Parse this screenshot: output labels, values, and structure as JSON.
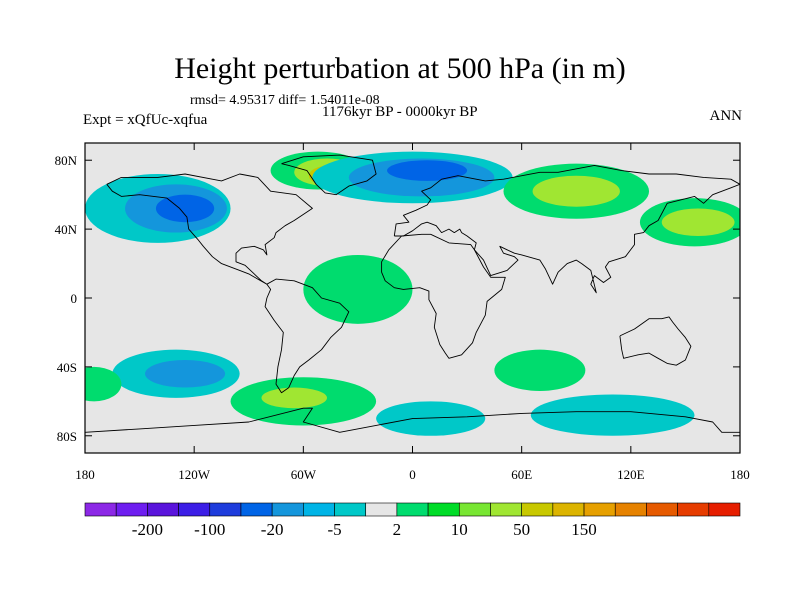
{
  "header": {
    "title": "Height perturbation at 500 hPa (in m)",
    "stats": "rmsd= 4.95317 diff= 1.54011e-08",
    "period": "1176kyr BP - 0000kyr BP",
    "experiment": "Expt = xQfUc-xqfua",
    "season": "ANN"
  },
  "map": {
    "projection": "cylindrical-equidistant",
    "lon_range": [
      -180,
      180
    ],
    "lat_range": [
      -90,
      90
    ],
    "x_ticks": [
      {
        "lon": -180,
        "label": "180"
      },
      {
        "lon": -120,
        "label": "120W"
      },
      {
        "lon": -60,
        "label": "60W"
      },
      {
        "lon": 0,
        "label": "0"
      },
      {
        "lon": 60,
        "label": "60E"
      },
      {
        "lon": 120,
        "label": "120E"
      },
      {
        "lon": 180,
        "label": "180"
      }
    ],
    "y_ticks": [
      {
        "lat": 80,
        "label": "80N"
      },
      {
        "lat": 40,
        "label": "40N"
      },
      {
        "lat": 0,
        "label": "0"
      },
      {
        "lat": -40,
        "label": "40S"
      },
      {
        "lat": -80,
        "label": "80S"
      }
    ],
    "background_color": "#e6e6e6",
    "anomaly_regions": [
      {
        "name": "north-pacific-low-outer",
        "color": "#00c8c8",
        "center": [
          -140,
          52
        ],
        "radius": [
          40,
          20
        ]
      },
      {
        "name": "north-pacific-low-mid",
        "color": "#1496dc",
        "center": [
          -130,
          52
        ],
        "radius": [
          28,
          14
        ]
      },
      {
        "name": "north-pacific-low-core",
        "color": "#0064e6",
        "center": [
          -125,
          52
        ],
        "radius": [
          16,
          8
        ]
      },
      {
        "name": "greenland-high-outer",
        "color": "#00dc6e",
        "center": [
          -52,
          74
        ],
        "radius": [
          26,
          11
        ]
      },
      {
        "name": "greenland-high-mid",
        "color": "#a0e632",
        "center": [
          -47,
          73
        ],
        "radius": [
          18,
          8
        ]
      },
      {
        "name": "greenland-high-core",
        "color": "#c8c800",
        "center": [
          -45,
          71
        ],
        "radius": [
          12,
          6
        ]
      },
      {
        "name": "north-atlantic-low-outer",
        "color": "#00c8c8",
        "center": [
          0,
          70
        ],
        "radius": [
          55,
          15
        ]
      },
      {
        "name": "north-atlantic-low-mid",
        "color": "#1496dc",
        "center": [
          5,
          70
        ],
        "radius": [
          40,
          11
        ]
      },
      {
        "name": "north-atlantic-low-core",
        "color": "#0064e6",
        "center": [
          8,
          74
        ],
        "radius": [
          22,
          6
        ]
      },
      {
        "name": "siberian-high-outer",
        "color": "#00dc6e",
        "center": [
          90,
          62
        ],
        "radius": [
          40,
          16
        ]
      },
      {
        "name": "siberian-high-core",
        "color": "#a0e632",
        "center": [
          90,
          62
        ],
        "radius": [
          24,
          9
        ]
      },
      {
        "name": "north-pacific-high-outer",
        "color": "#00dc6e",
        "center": [
          155,
          44
        ],
        "radius": [
          30,
          14
        ]
      },
      {
        "name": "north-pacific-high-core",
        "color": "#a0e632",
        "center": [
          157,
          44
        ],
        "radius": [
          20,
          8
        ]
      },
      {
        "name": "southeast-pacific-low-outer",
        "color": "#00c8c8",
        "center": [
          -130,
          -44
        ],
        "radius": [
          35,
          14
        ]
      },
      {
        "name": "southeast-pacific-low-core",
        "color": "#1496dc",
        "center": [
          -125,
          -44
        ],
        "radius": [
          22,
          8
        ]
      },
      {
        "name": "south-america-high-outer",
        "color": "#00dc6e",
        "center": [
          -60,
          -60
        ],
        "radius": [
          40,
          14
        ]
      },
      {
        "name": "south-america-high-core",
        "color": "#a0e632",
        "center": [
          -65,
          -58
        ],
        "radius": [
          18,
          6
        ]
      },
      {
        "name": "south-atlantic-high",
        "color": "#00dc6e",
        "center": [
          70,
          -42
        ],
        "radius": [
          25,
          12
        ]
      },
      {
        "name": "antarctic-low-atlantic",
        "color": "#00c8c8",
        "center": [
          10,
          -70
        ],
        "radius": [
          30,
          10
        ]
      },
      {
        "name": "antarctic-low-indian",
        "color": "#00c8c8",
        "center": [
          110,
          -68
        ],
        "radius": [
          45,
          12
        ]
      },
      {
        "name": "south-pacific-high",
        "color": "#00dc6e",
        "center": [
          -175,
          -50
        ],
        "radius": [
          15,
          10
        ]
      },
      {
        "name": "equatorial-atlantic-high",
        "color": "#00dc6e",
        "center": [
          -30,
          5
        ],
        "radius": [
          30,
          20
        ]
      }
    ],
    "coastline_color": "#000000",
    "coastlines": {
      "north-america": [
        [
          -168,
          66
        ],
        [
          -160,
          70
        ],
        [
          -140,
          70
        ],
        [
          -125,
          72
        ],
        [
          -105,
          68
        ],
        [
          -95,
          72
        ],
        [
          -85,
          70
        ],
        [
          -78,
          62
        ],
        [
          -64,
          60
        ],
        [
          -55,
          52
        ],
        [
          -65,
          45
        ],
        [
          -70,
          42
        ],
        [
          -75,
          38
        ],
        [
          -76,
          35
        ],
        [
          -81,
          31
        ],
        [
          -80,
          25
        ],
        [
          -82,
          28
        ],
        [
          -87,
          30
        ],
        [
          -94,
          29
        ],
        [
          -97,
          26
        ],
        [
          -97,
          21
        ],
        [
          -92,
          19
        ],
        [
          -88,
          15
        ],
        [
          -83,
          10
        ],
        [
          -80,
          8
        ],
        [
          -85,
          11
        ],
        [
          -90,
          14
        ],
        [
          -95,
          16
        ],
        [
          -105,
          20
        ],
        [
          -110,
          24
        ],
        [
          -115,
          30
        ],
        [
          -118,
          34
        ],
        [
          -123,
          40
        ],
        [
          -124,
          47
        ],
        [
          -128,
          52
        ],
        [
          -135,
          58
        ],
        [
          -150,
          60
        ],
        [
          -160,
          59
        ],
        [
          -165,
          62
        ],
        [
          -168,
          66
        ]
      ],
      "south-america": [
        [
          -80,
          8
        ],
        [
          -75,
          11
        ],
        [
          -65,
          10
        ],
        [
          -55,
          6
        ],
        [
          -50,
          0
        ],
        [
          -40,
          -3
        ],
        [
          -35,
          -8
        ],
        [
          -39,
          -17
        ],
        [
          -45,
          -23
        ],
        [
          -50,
          -30
        ],
        [
          -57,
          -36
        ],
        [
          -62,
          -40
        ],
        [
          -65,
          -45
        ],
        [
          -68,
          -52
        ],
        [
          -72,
          -55
        ],
        [
          -75,
          -50
        ],
        [
          -74,
          -40
        ],
        [
          -72,
          -30
        ],
        [
          -71,
          -20
        ],
        [
          -76,
          -13
        ],
        [
          -81,
          -5
        ],
        [
          -80,
          0
        ],
        [
          -78,
          5
        ],
        [
          -80,
          8
        ]
      ],
      "greenland": [
        [
          -72,
          78
        ],
        [
          -60,
          82
        ],
        [
          -40,
          83
        ],
        [
          -22,
          80
        ],
        [
          -20,
          72
        ],
        [
          -25,
          68
        ],
        [
          -35,
          65
        ],
        [
          -42,
          60
        ],
        [
          -48,
          61
        ],
        [
          -53,
          66
        ],
        [
          -58,
          74
        ],
        [
          -68,
          77
        ],
        [
          -72,
          78
        ]
      ],
      "eurasia": [
        [
          -10,
          36
        ],
        [
          -9,
          43
        ],
        [
          -2,
          44
        ],
        [
          -5,
          48
        ],
        [
          2,
          51
        ],
        [
          8,
          54
        ],
        [
          10,
          57
        ],
        [
          5,
          62
        ],
        [
          10,
          64
        ],
        [
          16,
          69
        ],
        [
          25,
          71
        ],
        [
          40,
          68
        ],
        [
          50,
          69
        ],
        [
          70,
          73
        ],
        [
          80,
          73
        ],
        [
          100,
          77
        ],
        [
          115,
          74
        ],
        [
          130,
          72
        ],
        [
          145,
          72
        ],
        [
          160,
          70
        ],
        [
          175,
          69
        ],
        [
          180,
          66
        ],
        [
          175,
          64
        ],
        [
          165,
          60
        ],
        [
          160,
          55
        ],
        [
          155,
          59
        ],
        [
          140,
          55
        ],
        [
          135,
          45
        ],
        [
          130,
          42
        ],
        [
          127,
          38
        ],
        [
          122,
          37
        ],
        [
          122,
          31
        ],
        [
          117,
          24
        ],
        [
          108,
          21
        ],
        [
          106,
          18
        ],
        [
          109,
          12
        ],
        [
          105,
          9
        ],
        [
          100,
          13
        ],
        [
          98,
          8
        ],
        [
          101,
          3
        ],
        [
          98,
          16
        ],
        [
          93,
          20
        ],
        [
          90,
          22
        ],
        [
          85,
          20
        ],
        [
          80,
          15
        ],
        [
          77,
          8
        ],
        [
          73,
          17
        ],
        [
          70,
          22
        ],
        [
          60,
          25
        ],
        [
          56,
          26
        ],
        [
          52,
          28
        ],
        [
          48,
          30
        ],
        [
          50,
          26
        ],
        [
          56,
          24
        ],
        [
          58,
          22
        ],
        [
          52,
          16
        ],
        [
          43,
          13
        ],
        [
          39,
          22
        ],
        [
          34,
          28
        ],
        [
          35,
          32
        ],
        [
          30,
          36
        ],
        [
          27,
          38
        ],
        [
          26,
          40
        ],
        [
          23,
          38
        ],
        [
          20,
          40
        ],
        [
          16,
          38
        ],
        [
          13,
          42
        ],
        [
          8,
          44
        ],
        [
          5,
          43
        ],
        [
          0,
          39
        ],
        [
          -5,
          36
        ],
        [
          -10,
          36
        ]
      ],
      "africa": [
        [
          -17,
          15
        ],
        [
          -17,
          21
        ],
        [
          -13,
          28
        ],
        [
          -6,
          36
        ],
        [
          5,
          37
        ],
        [
          10,
          37
        ],
        [
          20,
          32
        ],
        [
          32,
          31
        ],
        [
          34,
          28
        ],
        [
          39,
          18
        ],
        [
          43,
          12
        ],
        [
          51,
          12
        ],
        [
          49,
          5
        ],
        [
          41,
          -2
        ],
        [
          40,
          -10
        ],
        [
          35,
          -20
        ],
        [
          33,
          -26
        ],
        [
          27,
          -33
        ],
        [
          20,
          -35
        ],
        [
          18,
          -32
        ],
        [
          15,
          -27
        ],
        [
          12,
          -17
        ],
        [
          13,
          -9
        ],
        [
          9,
          -1
        ],
        [
          9,
          4
        ],
        [
          4,
          6
        ],
        [
          -5,
          5
        ],
        [
          -10,
          6
        ],
        [
          -15,
          10
        ],
        [
          -17,
          15
        ]
      ],
      "australia": [
        [
          114,
          -22
        ],
        [
          122,
          -18
        ],
        [
          130,
          -12
        ],
        [
          137,
          -12
        ],
        [
          141,
          -11
        ],
        [
          143,
          -14
        ],
        [
          146,
          -18
        ],
        [
          150,
          -23
        ],
        [
          153,
          -28
        ],
        [
          150,
          -36
        ],
        [
          145,
          -39
        ],
        [
          140,
          -38
        ],
        [
          135,
          -35
        ],
        [
          130,
          -32
        ],
        [
          124,
          -33
        ],
        [
          116,
          -35
        ],
        [
          115,
          -30
        ],
        [
          114,
          -22
        ]
      ],
      "antarctica": [
        [
          -180,
          -78
        ],
        [
          -150,
          -76
        ],
        [
          -120,
          -74
        ],
        [
          -90,
          -72
        ],
        [
          -60,
          -64
        ],
        [
          -55,
          -64
        ],
        [
          -60,
          -72
        ],
        [
          -40,
          -78
        ],
        [
          -20,
          -74
        ],
        [
          0,
          -70
        ],
        [
          30,
          -69
        ],
        [
          60,
          -67
        ],
        [
          90,
          -66
        ],
        [
          120,
          -66
        ],
        [
          150,
          -69
        ],
        [
          165,
          -72
        ],
        [
          170,
          -78
        ],
        [
          180,
          -78
        ]
      ]
    }
  },
  "colorbar": {
    "colors": [
      "#8c28e6",
      "#6e1ef0",
      "#5a14dc",
      "#3c1ee6",
      "#1e3cdc",
      "#0064e6",
      "#1496dc",
      "#00b4e6",
      "#00c8c8",
      "#e6e6e6",
      "#00dc6e",
      "#00dc28",
      "#78e632",
      "#a0e632",
      "#c8c800",
      "#dcb400",
      "#e6a000",
      "#e68200",
      "#e65a00",
      "#e63c00",
      "#e61e00"
    ],
    "labels": [
      {
        "after": 1,
        "text": "-200"
      },
      {
        "after": 3,
        "text": "-100"
      },
      {
        "after": 5,
        "text": "-20"
      },
      {
        "after": 7,
        "text": "-5"
      },
      {
        "after": 9,
        "text": "2"
      },
      {
        "after": 11,
        "text": "10"
      },
      {
        "after": 13,
        "text": "50"
      },
      {
        "after": 15,
        "text": "150"
      }
    ]
  }
}
